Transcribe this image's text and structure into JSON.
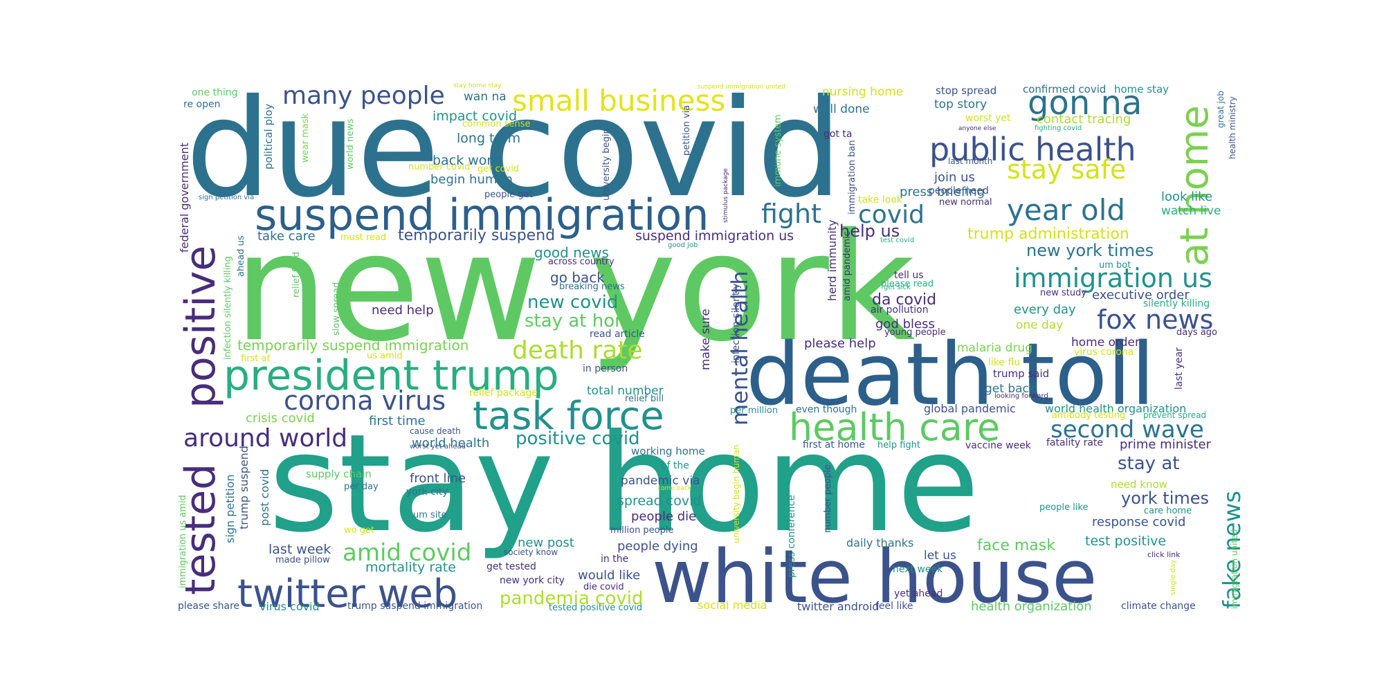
{
  "word_cloud": {
    "colormap": "viridis",
    "colors": {
      "dark_purple": "#440154",
      "purple": "#472d7b",
      "indigo": "#3b528b",
      "blue": "#2c728e",
      "teal": "#21918c",
      "sea_green": "#28ae80",
      "green": "#5ec962",
      "lime": "#addc30",
      "yellow": "#e3e31b"
    },
    "words": [
      {
        "text": "due covid",
        "color": "#2c728e"
      },
      {
        "text": "new york",
        "color": "#5ec962"
      },
      {
        "text": "stay home",
        "color": "#21a08a"
      },
      {
        "text": "death toll",
        "color": "#2c5f8a"
      },
      {
        "text": "white house",
        "color": "#3b528b"
      },
      {
        "text": "suspend immigration",
        "color": "#2c5f8a"
      },
      {
        "text": "president trump",
        "color": "#28ae80"
      },
      {
        "text": "twitter web",
        "color": "#3b528b"
      },
      {
        "text": "task force",
        "color": "#21918c"
      },
      {
        "text": "health care",
        "color": "#5ec962"
      },
      {
        "text": "public health",
        "color": "#3b528b"
      },
      {
        "text": "positive",
        "color": "#472d7b"
      },
      {
        "text": "tested",
        "color": "#472d7b"
      },
      {
        "text": "at home",
        "color": "#7ad151"
      },
      {
        "text": "many people",
        "color": "#3b528b"
      },
      {
        "text": "small business",
        "color": "#e3e31b"
      },
      {
        "text": "gon na",
        "color": "#2c728e"
      },
      {
        "text": "stay safe",
        "color": "#d2e21b"
      },
      {
        "text": "year old",
        "color": "#2c728e"
      },
      {
        "text": "fight",
        "color": "#2c728e"
      },
      {
        "text": "covid",
        "color": "#2c728e"
      },
      {
        "text": "immigration us",
        "color": "#21918c"
      },
      {
        "text": "fox news",
        "color": "#3b528b"
      },
      {
        "text": "corona virus",
        "color": "#3b528b"
      },
      {
        "text": "around world",
        "color": "#472d7b"
      },
      {
        "text": "death rate",
        "color": "#addc30"
      },
      {
        "text": "second wave",
        "color": "#2c728e"
      },
      {
        "text": "amid covid",
        "color": "#5ec962"
      },
      {
        "text": "fake news",
        "color": "#21918c"
      },
      {
        "text": "mental health",
        "color": "#3b528b"
      },
      {
        "text": "positive covid",
        "color": "#21918c"
      },
      {
        "text": "pandemia covid",
        "color": "#addc30"
      },
      {
        "text": "stay at home",
        "color": "#5ec962"
      },
      {
        "text": "new covid",
        "color": "#21918c"
      },
      {
        "text": "stay at",
        "color": "#3b528b"
      },
      {
        "text": "york times",
        "color": "#3b528b"
      },
      {
        "text": "new york times",
        "color": "#2c728e"
      },
      {
        "text": "trump administration",
        "color": "#d2e21b"
      },
      {
        "text": "temporarily suspend",
        "color": "#3b528b"
      },
      {
        "text": "temporarily suspend immigration",
        "color": "#7ad151"
      },
      {
        "text": "suspend immigration us",
        "color": "#472d7b"
      },
      {
        "text": "help us",
        "color": "#472d7b"
      },
      {
        "text": "face mask",
        "color": "#5ec962"
      },
      {
        "text": "last week",
        "color": "#3b528b"
      },
      {
        "text": "mortality rate",
        "color": "#21918c"
      },
      {
        "text": "health organization",
        "color": "#5ec962"
      },
      {
        "text": "spread covid",
        "color": "#21918c"
      },
      {
        "text": "people dying",
        "color": "#3b528b"
      },
      {
        "text": "people die",
        "color": "#472d7b"
      },
      {
        "text": "test positive",
        "color": "#21918c"
      },
      {
        "text": "response covid",
        "color": "#3b528b"
      },
      {
        "text": "prime minister",
        "color": "#472d7b"
      },
      {
        "text": "world health organization",
        "color": "#21918c"
      },
      {
        "text": "global pandemic",
        "color": "#3b528b"
      },
      {
        "text": "executive order",
        "color": "#3b528b"
      },
      {
        "text": "every day",
        "color": "#21918c"
      },
      {
        "text": "da covid",
        "color": "#472d7b"
      },
      {
        "text": "please help",
        "color": "#472d7b"
      },
      {
        "text": "god bless",
        "color": "#472d7b"
      },
      {
        "text": "one day",
        "color": "#addc30"
      },
      {
        "text": "home order",
        "color": "#472d7b"
      },
      {
        "text": "malaria drug",
        "color": "#7ad151"
      },
      {
        "text": "get back",
        "color": "#2c728e"
      },
      {
        "text": "trump said",
        "color": "#472d7b"
      },
      {
        "text": "good news",
        "color": "#21918c"
      },
      {
        "text": "go back",
        "color": "#3b528b"
      },
      {
        "text": "need help",
        "color": "#472d7b"
      },
      {
        "text": "impact covid",
        "color": "#21918c"
      },
      {
        "text": "long term",
        "color": "#2c728e"
      },
      {
        "text": "back work",
        "color": "#2c728e"
      },
      {
        "text": "begin human",
        "color": "#2c728e"
      },
      {
        "text": "take care",
        "color": "#2c728e"
      },
      {
        "text": "first time",
        "color": "#2c728e"
      },
      {
        "text": "world health",
        "color": "#2c728e"
      },
      {
        "text": "crisis covid",
        "color": "#7ad151"
      },
      {
        "text": "front line",
        "color": "#3b528b"
      },
      {
        "text": "pandemic via",
        "color": "#3b528b"
      },
      {
        "text": "working home",
        "color": "#2c728e"
      },
      {
        "text": "new post",
        "color": "#21918c"
      },
      {
        "text": "would like",
        "color": "#3b528b"
      },
      {
        "text": "total number",
        "color": "#21918c"
      },
      {
        "text": "press briefing",
        "color": "#2c728e"
      },
      {
        "text": "look like",
        "color": "#21918c"
      },
      {
        "text": "watch live",
        "color": "#28ae80"
      },
      {
        "text": "join us",
        "color": "#3b528b"
      },
      {
        "text": "contact tracing",
        "color": "#addc30"
      },
      {
        "text": "top story",
        "color": "#2c728e"
      },
      {
        "text": "well done",
        "color": "#2c728e"
      },
      {
        "text": "nursing home",
        "color": "#d2e21b"
      },
      {
        "text": "stop spread",
        "color": "#3b528b"
      },
      {
        "text": "confirmed covid",
        "color": "#2c728e"
      },
      {
        "text": "home stay",
        "color": "#21918c"
      },
      {
        "text": "one thing",
        "color": "#5ec962"
      },
      {
        "text": "re open",
        "color": "#2c728e"
      },
      {
        "text": "wan na",
        "color": "#2c728e"
      },
      {
        "text": "federal government",
        "color": "#472d7b"
      },
      {
        "text": "political ploy",
        "color": "#2c728e"
      },
      {
        "text": "wear mask",
        "color": "#7ad151"
      },
      {
        "text": "world news",
        "color": "#5ec962"
      },
      {
        "text": "university begin",
        "color": "#3b528b"
      },
      {
        "text": "petition via",
        "color": "#3b528b"
      },
      {
        "text": "immune system",
        "color": "#5ec962"
      },
      {
        "text": "immigration ban",
        "color": "#3b528b"
      },
      {
        "text": "herd immunity",
        "color": "#472d7b"
      },
      {
        "text": "amid pandemic",
        "color": "#472d7b"
      },
      {
        "text": "make sure",
        "color": "#472d7b"
      },
      {
        "text": "infection silently",
        "color": "#3b528b"
      },
      {
        "text": "press conference",
        "color": "#21918c"
      },
      {
        "text": "number people",
        "color": "#3b528b"
      },
      {
        "text": "sign petition",
        "color": "#2c728e"
      },
      {
        "text": "trump suspend",
        "color": "#3b528b"
      },
      {
        "text": "post covid",
        "color": "#2c728e"
      },
      {
        "text": "supply chain",
        "color": "#5ec962"
      },
      {
        "text": "per day",
        "color": "#2c728e"
      },
      {
        "text": "york city",
        "color": "#2c728e"
      },
      {
        "text": "um site",
        "color": "#2c728e"
      },
      {
        "text": "daily thanks",
        "color": "#2c728e"
      },
      {
        "text": "let us",
        "color": "#3b528b"
      },
      {
        "text": "next week",
        "color": "#21918c"
      },
      {
        "text": "need know",
        "color": "#addc30"
      },
      {
        "text": "care home",
        "color": "#21918c"
      },
      {
        "text": "people like",
        "color": "#21918c"
      },
      {
        "text": "climate change",
        "color": "#3b528b"
      },
      {
        "text": "feel like",
        "color": "#3b528b"
      },
      {
        "text": "twitter android",
        "color": "#3b528b"
      },
      {
        "text": "social media",
        "color": "#d2e21b"
      },
      {
        "text": "tested positive covid",
        "color": "#21918c"
      },
      {
        "text": "trump suspend immigration",
        "color": "#3b528b"
      },
      {
        "text": "virus covid",
        "color": "#21918c"
      },
      {
        "text": "please share",
        "color": "#3b528b"
      },
      {
        "text": "made pillow",
        "color": "#3b528b"
      },
      {
        "text": "get tested",
        "color": "#472d7b"
      },
      {
        "text": "new york city",
        "color": "#472d7b"
      },
      {
        "text": "die covid",
        "color": "#472d7b"
      },
      {
        "text": "society know",
        "color": "#3b528b"
      },
      {
        "text": "in the",
        "color": "#472d7b"
      },
      {
        "text": "million people",
        "color": "#3b528b"
      },
      {
        "text": "wo get",
        "color": "#d2e21b"
      },
      {
        "text": "relief bill",
        "color": "#2c728e"
      },
      {
        "text": "in person",
        "color": "#3b528b"
      },
      {
        "text": "read article",
        "color": "#3b528b"
      },
      {
        "text": "breaking news",
        "color": "#2c728e"
      },
      {
        "text": "across country",
        "color": "#472d7b"
      },
      {
        "text": "people get",
        "color": "#3b528b"
      },
      {
        "text": "get covid",
        "color": "#d2e21b"
      },
      {
        "text": "number covid",
        "color": "#d2e21b"
      },
      {
        "text": "must read",
        "color": "#d2e21b"
      },
      {
        "text": "first at",
        "color": "#d2e21b"
      },
      {
        "text": "us amid",
        "color": "#d2e21b"
      },
      {
        "text": "relief package",
        "color": "#d2e21b"
      },
      {
        "text": "relief fund",
        "color": "#5ec962"
      },
      {
        "text": "slow spread",
        "color": "#5ec962"
      },
      {
        "text": "infection silently killing",
        "color": "#5ec962"
      },
      {
        "text": "ahead us",
        "color": "#2c728e"
      },
      {
        "text": "immigration us amid",
        "color": "#5ec962"
      },
      {
        "text": "cause death",
        "color": "#3b528b"
      },
      {
        "text": "worst yet ahead",
        "color": "#3b528b"
      },
      {
        "text": "of the",
        "color": "#21918c"
      },
      {
        "text": "common sense",
        "color": "#d2e21b"
      },
      {
        "text": "got ta",
        "color": "#472d7b"
      },
      {
        "text": "take look",
        "color": "#d2e21b"
      },
      {
        "text": "new normal",
        "color": "#472d7b"
      },
      {
        "text": "people need",
        "color": "#3b528b"
      },
      {
        "text": "last month",
        "color": "#3b528b"
      },
      {
        "text": "worst yet",
        "color": "#d2e21b"
      },
      {
        "text": "great job",
        "color": "#2c728e"
      },
      {
        "text": "health ministry",
        "color": "#3b528b"
      },
      {
        "text": "fighting covid",
        "color": "#28ae80"
      },
      {
        "text": "anyone else",
        "color": "#472d7b"
      },
      {
        "text": "tell us",
        "color": "#472d7b"
      },
      {
        "text": "please read",
        "color": "#28ae80"
      },
      {
        "text": "air pollution",
        "color": "#472d7b"
      },
      {
        "text": "young people",
        "color": "#472d7b"
      },
      {
        "text": "um bot",
        "color": "#21918c"
      },
      {
        "text": "new study",
        "color": "#472d7b"
      },
      {
        "text": "silently killing",
        "color": "#28ae80"
      },
      {
        "text": "days ago",
        "color": "#472d7b"
      },
      {
        "text": "like flu",
        "color": "#d2e21b"
      },
      {
        "text": "virus corona",
        "color": "#d2e21b"
      },
      {
        "text": "last year",
        "color": "#472d7b"
      },
      {
        "text": "looking forward",
        "color": "#472d7b"
      },
      {
        "text": "per million",
        "color": "#21918c"
      },
      {
        "text": "even though",
        "color": "#2c728e"
      },
      {
        "text": "antibody testing",
        "color": "#d2e21b"
      },
      {
        "text": "prevent spread",
        "color": "#28ae80"
      },
      {
        "text": "first at home",
        "color": "#3b528b"
      },
      {
        "text": "help fight",
        "color": "#21918c"
      },
      {
        "text": "vaccine week",
        "color": "#472d7b"
      },
      {
        "text": "fatality rate",
        "color": "#472d7b"
      },
      {
        "text": "university begin human",
        "color": "#d2e21b"
      },
      {
        "text": "come back",
        "color": "#d2e21b"
      },
      {
        "text": "click link",
        "color": "#472d7b"
      },
      {
        "text": "single day",
        "color": "#d2e21b"
      },
      {
        "text": "immigration united",
        "color": "#5ec962"
      },
      {
        "text": "yet ahead",
        "color": "#472d7b"
      },
      {
        "text": "stay home stay",
        "color": "#d2e21b"
      },
      {
        "text": "suspend immigration united",
        "color": "#d2e21b"
      },
      {
        "text": "sign petition via",
        "color": "#2c728e"
      },
      {
        "text": "stimulus package",
        "color": "#472d7b"
      },
      {
        "text": "test covid",
        "color": "#28ae80"
      },
      {
        "text": "get sick",
        "color": "#28ae80"
      },
      {
        "text": "good job",
        "color": "#21918c"
      }
    ]
  }
}
